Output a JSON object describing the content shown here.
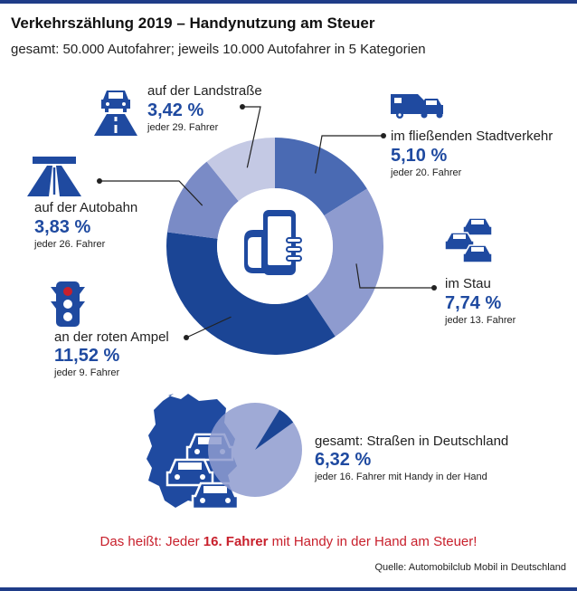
{
  "header": {
    "title": "Verkehrszählung 2019 – Handynutzung am Steuer",
    "subtitle": "gesamt:  50.000 Autofahrer; jeweils 10.000 Autofahrer in 5 Kategorien"
  },
  "colors": {
    "accent_blue": "#1f4aa0",
    "dark_blue": "#1b4595",
    "medium_blue": "#4a6ab3",
    "periwinkle": "#8e9bcf",
    "light_periwinkle": "#c4c9e4",
    "slate_blue": "#7a8bc6",
    "red": "#c8202c"
  },
  "chart_data": [
    {
      "type": "pie",
      "subtype": "donut",
      "slices": [
        {
          "label": "im fließenden Stadtverkehr",
          "percent": "5,10 %",
          "value": 5.1,
          "frequency": "jeder 20. Fahrer",
          "icon": "van-and-car-icon"
        },
        {
          "label": "im Stau",
          "percent": "7,74 %",
          "value": 7.74,
          "frequency": "jeder 13. Fahrer",
          "icon": "traffic-jam-icon"
        },
        {
          "label": "an der roten Ampel",
          "percent": "11,52 %",
          "value": 11.52,
          "frequency": "jeder 9. Fahrer",
          "icon": "traffic-light-icon"
        },
        {
          "label": "auf der Autobahn",
          "percent": "3,83 %",
          "value": 3.83,
          "frequency": "jeder 26. Fahrer",
          "icon": "highway-icon"
        },
        {
          "label": "auf der Landstraße",
          "percent": "3,42 %",
          "value": 3.42,
          "frequency": "jeder 29. Fahrer",
          "icon": "country-road-icon"
        }
      ],
      "center_icon": "hand-holding-phone-icon"
    },
    {
      "type": "pie",
      "slices": [
        {
          "label": "gesamt: Straßen in Deutschland",
          "percent": "6,32 %",
          "value": 6.32,
          "frequency": "jeder 16. Fahrer mit Handy in der Hand"
        }
      ],
      "background_icon": "germany-map-with-cars-icon"
    }
  ],
  "conclusion": {
    "prefix": "Das heißt: Jeder ",
    "highlight": "16. Fahrer",
    "suffix": " mit Handy in der Hand am Steuer!"
  },
  "source": "Quelle:  Automobilclub Mobil in Deutschland"
}
